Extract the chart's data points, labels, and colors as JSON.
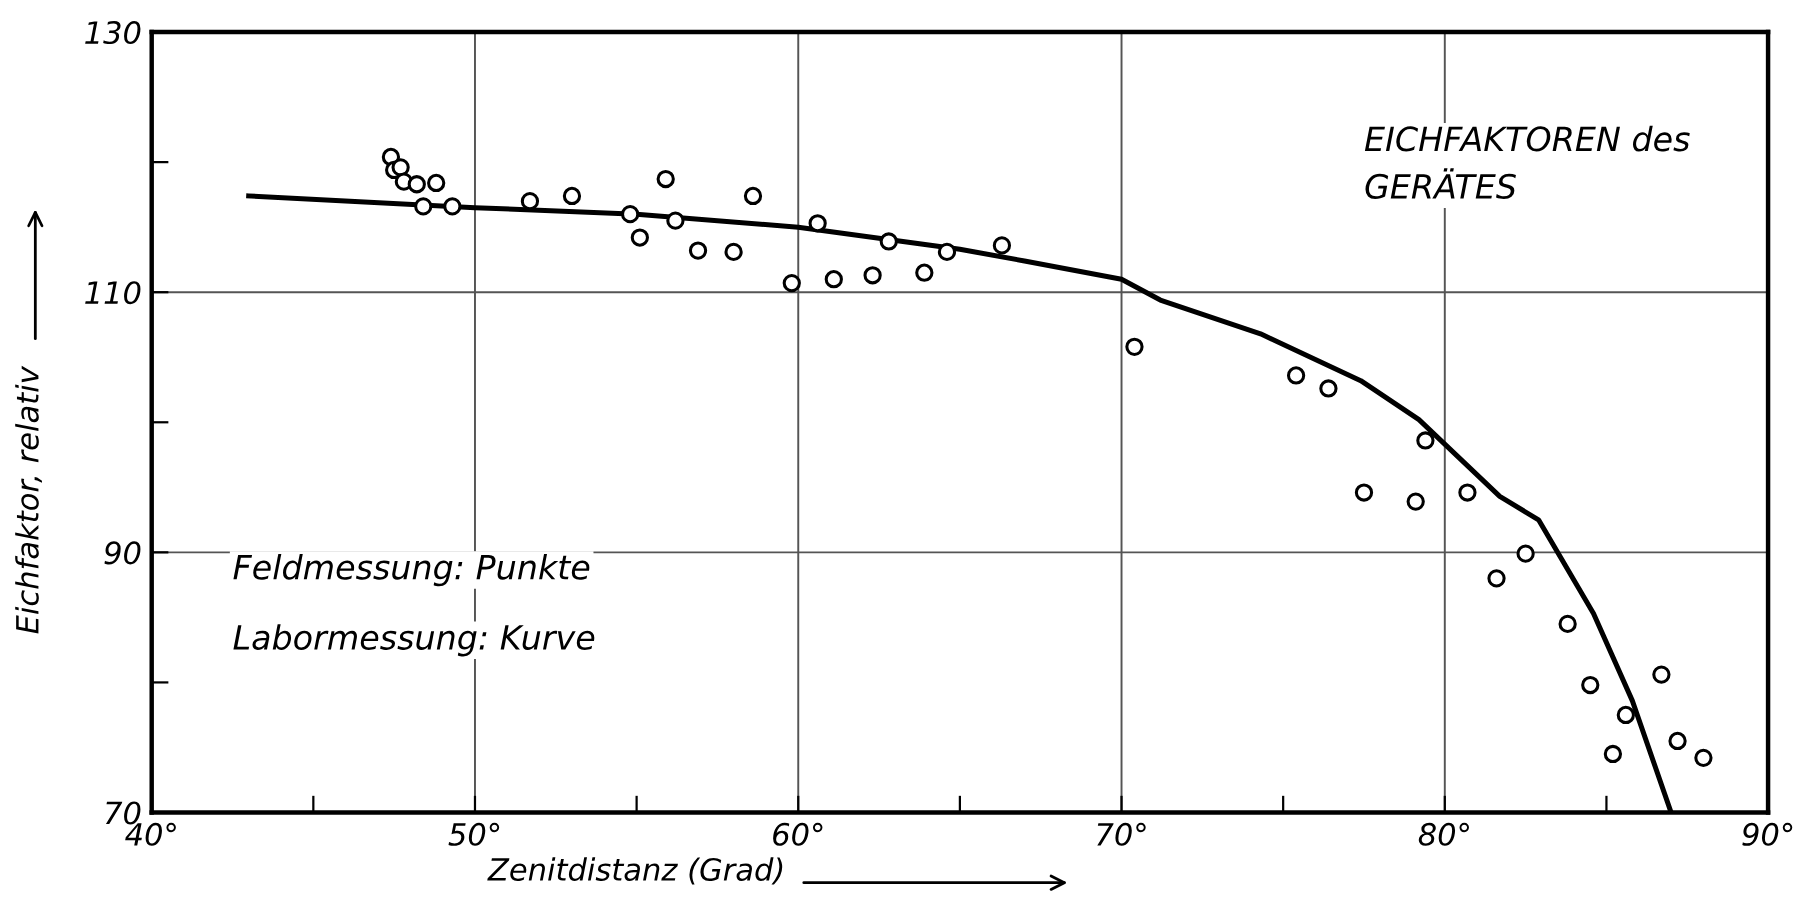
{
  "chart_data": {
    "type": "scatter",
    "xlabel": "Zenitdistanz (Grad)",
    "ylabel": "Eichfaktor, relativ",
    "annotations": [
      "EICHFAKTOREN des\nGERÄTES",
      "Feldmessung: Punkte",
      "Labormessung: Kurve"
    ],
    "xlim": [
      40,
      90
    ],
    "ylim": [
      70,
      130
    ],
    "xticks": [
      {
        "value": 40,
        "label": "40°"
      },
      {
        "value": 45,
        "label": null
      },
      {
        "value": 50,
        "label": "50°"
      },
      {
        "value": 55,
        "label": null
      },
      {
        "value": 60,
        "label": "60°"
      },
      {
        "value": 65,
        "label": null
      },
      {
        "value": 70,
        "label": "70°"
      },
      {
        "value": 75,
        "label": null
      },
      {
        "value": 80,
        "label": "80°"
      },
      {
        "value": 85,
        "label": null
      },
      {
        "value": 90,
        "label": "90°"
      }
    ],
    "yticks": [
      70,
      {
        "value": 80,
        "label": null
      },
      90,
      {
        "value": 100,
        "label": null
      },
      110,
      {
        "value": 120,
        "label": null
      },
      130
    ],
    "grid": true,
    "legend": false,
    "series": [
      {
        "marker": "circle",
        "color": "#000000",
        "x": [
          47.4,
          47.5,
          47.7,
          47.8,
          48.2,
          48.8,
          48.4,
          49.3,
          51.7,
          53.0,
          54.8,
          55.1,
          55.9,
          56.2,
          56.9,
          58.0,
          58.6,
          59.8,
          60.6,
          61.1,
          62.3,
          62.8,
          63.9,
          64.6,
          66.3,
          70.4,
          75.4,
          76.4,
          79.4,
          77.5,
          79.1,
          80.7,
          82.5,
          81.6,
          83.8,
          84.5,
          86.7,
          85.6,
          87.2,
          85.2,
          88.0
        ],
        "values": [
          120.4,
          119.4,
          119.6,
          118.5,
          118.3,
          118.4,
          116.6,
          116.6,
          117.0,
          117.4,
          116.0,
          114.2,
          118.7,
          115.5,
          113.2,
          113.1,
          117.4,
          110.7,
          115.3,
          111.0,
          111.3,
          113.9,
          111.5,
          113.1,
          113.6,
          105.8,
          103.6,
          102.6,
          98.6,
          94.6,
          93.9,
          94.6,
          89.9,
          88.0,
          84.5,
          79.8,
          80.6,
          77.5,
          75.5,
          74.5,
          74.2
        ]
      },
      {
        "type": "line",
        "marker": "none",
        "line_style": "solid",
        "color": "#000000",
        "x": [
          43.0,
          50,
          55,
          60,
          65,
          67,
          70,
          71.2,
          74.3,
          77.4,
          79.2,
          81.7,
          82.9,
          84.6,
          85.8,
          87.0
        ],
        "values": [
          117.4,
          116.5,
          116.0,
          115.0,
          113.3,
          112.4,
          111.0,
          109.4,
          106.8,
          103.2,
          100.2,
          94.3,
          92.5,
          85.3,
          78.6,
          70.0
        ]
      }
    ]
  }
}
